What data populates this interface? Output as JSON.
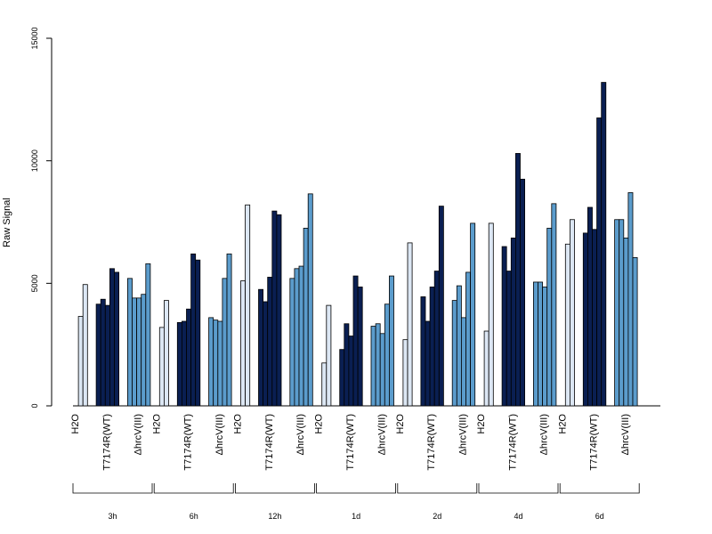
{
  "chart_data": {
    "type": "bar",
    "title": "",
    "xlabel": "",
    "ylabel": "Raw Signal",
    "ylim": [
      0,
      15000
    ],
    "yticks": [
      "0",
      "5000",
      "10000",
      "15000"
    ],
    "categories": [
      "H2O",
      "T7174R(WT)",
      "ΔhrcV(III)"
    ],
    "colors": {
      "H2O": "#dce7f4",
      "T7174R(WT)": "#0a1f52",
      "ΔhrcV(III)": "#5b9ccc"
    },
    "groups": [
      {
        "label": "3h",
        "H2O": [
          0,
          3650,
          4950
        ],
        "T7174R(WT)": [
          4150,
          4350,
          4100,
          5600,
          5450
        ],
        "ΔhrcV(III)": [
          5200,
          4400,
          4400,
          4550,
          5800
        ]
      },
      {
        "label": "6h",
        "H2O": [
          0,
          3200,
          4300
        ],
        "T7174R(WT)": [
          3400,
          3450,
          3950,
          6200,
          5950
        ],
        "ΔhrcV(III)": [
          3600,
          3500,
          3450,
          5200,
          6200
        ]
      },
      {
        "label": "12h",
        "H2O": [
          0,
          5100,
          8200
        ],
        "T7174R(WT)": [
          4750,
          4250,
          5250,
          7950,
          7800
        ],
        "ΔhrcV(III)": [
          5200,
          5600,
          5700,
          7250,
          8650
        ]
      },
      {
        "label": "1d",
        "H2O": [
          0,
          1750,
          4100
        ],
        "T7174R(WT)": [
          2300,
          3350,
          2850,
          5300,
          4850
        ],
        "ΔhrcV(III)": [
          3250,
          3350,
          2950,
          4150,
          5300
        ]
      },
      {
        "label": "2d",
        "H2O": [
          0,
          2700,
          6650
        ],
        "T7174R(WT)": [
          4450,
          3450,
          4850,
          5500,
          8150
        ],
        "ΔhrcV(III)": [
          4300,
          4900,
          3600,
          5450,
          7450
        ]
      },
      {
        "label": "4d",
        "H2O": [
          0,
          3050,
          7450
        ],
        "T7174R(WT)": [
          6500,
          5500,
          6850,
          10300,
          9250
        ],
        "ΔhrcV(III)": [
          5050,
          5050,
          4850,
          7250,
          8250
        ]
      },
      {
        "label": "6d",
        "H2O": [
          0,
          6600,
          7600
        ],
        "T7174R(WT)": [
          7050,
          8100,
          7200,
          11750,
          13200
        ],
        "ΔhrcV(III)": [
          7600,
          7600,
          6850,
          8700,
          6050
        ]
      }
    ]
  }
}
